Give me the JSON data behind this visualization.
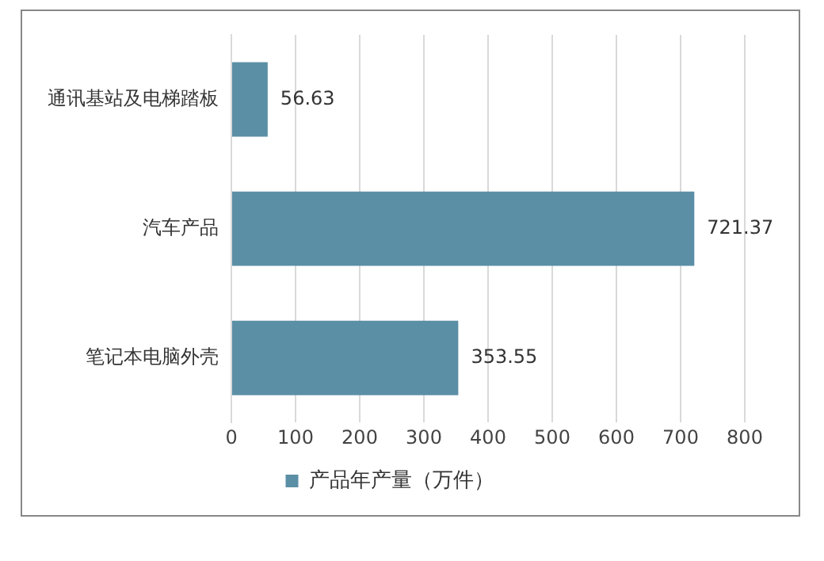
{
  "chart_data": {
    "type": "bar",
    "orientation": "horizontal",
    "categories": [
      "通讯基站及电梯踏板",
      "汽车产品",
      "笔记本电脑外壳"
    ],
    "series": [
      {
        "name": "产品年产量（万件）",
        "color": "#5b8fa6",
        "values": [
          56.63,
          721.37,
          353.55
        ]
      }
    ],
    "xlim": [
      0,
      800
    ],
    "xticks": [
      0,
      100,
      200,
      300,
      400,
      500,
      600,
      700,
      800
    ],
    "grid": "x",
    "legend": "bottom",
    "data_labels": true
  }
}
